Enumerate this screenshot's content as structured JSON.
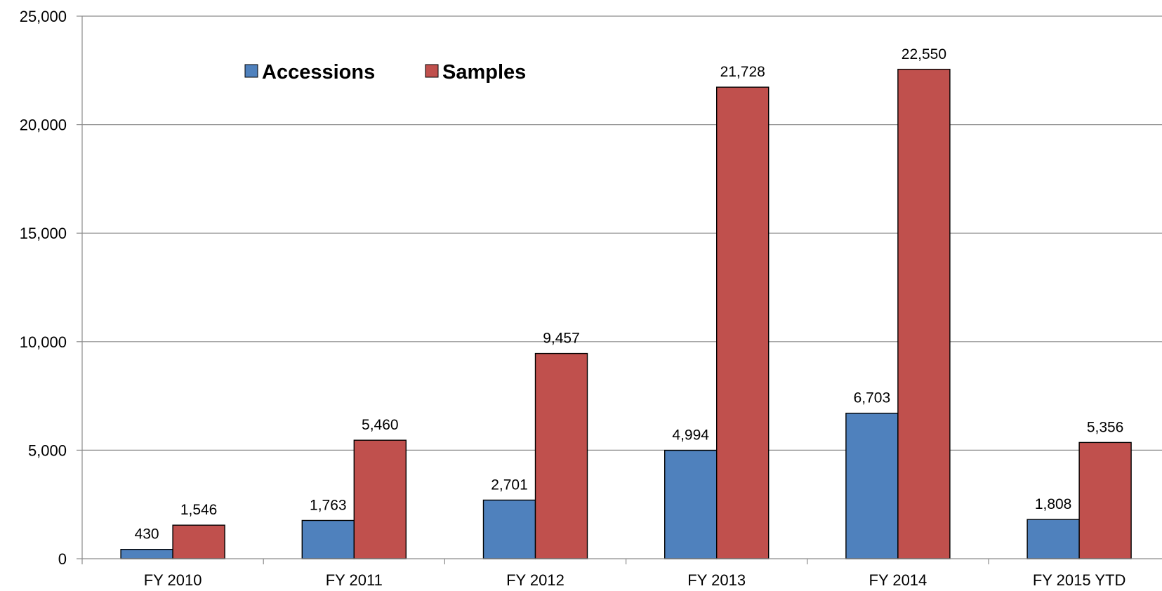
{
  "chart_data": {
    "type": "bar",
    "categories": [
      "FY 2010",
      "FY 2011",
      "FY 2012",
      "FY 2013",
      "FY 2014",
      "FY 2015 YTD"
    ],
    "series": [
      {
        "name": "Accessions",
        "color": "#4f81bd",
        "values": [
          430,
          1763,
          2701,
          4994,
          6703,
          1808
        ],
        "labels": [
          "430",
          "1,763",
          "2,701",
          "4,994",
          "6,703",
          "1,808"
        ]
      },
      {
        "name": "Samples",
        "color": "#c0504d",
        "values": [
          1546,
          5460,
          9457,
          21728,
          22550,
          5356
        ],
        "labels": [
          "1,546",
          "5,460",
          "9,457",
          "21,728",
          "22,550",
          "5,356"
        ]
      }
    ],
    "title": "",
    "xlabel": "",
    "ylabel": "",
    "ylim": [
      0,
      25000
    ],
    "yticks": [
      0,
      5000,
      10000,
      15000,
      20000,
      25000
    ],
    "ytick_labels": [
      "0",
      "5,000",
      "10,000",
      "15,000",
      "20,000",
      "25,000"
    ],
    "grid": true,
    "legend_position": "top-left"
  }
}
